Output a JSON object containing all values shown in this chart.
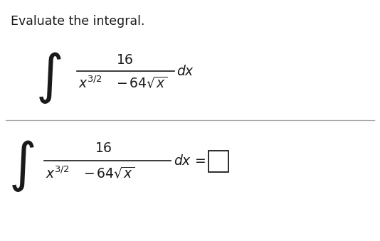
{
  "background_color": "#ffffff",
  "title": "Evaluate the integral.",
  "title_fontsize": 12.5,
  "text_color": "#1a1a1a",
  "line_color": "#aaaaaa",
  "figsize": [
    5.34,
    3.39
  ],
  "dpi": 100,
  "upper_integral_expr": "$\\displaystyle\\int\\frac{16}{x^{3/2}-64\\sqrt{x}}\\,dx$",
  "lower_integral_expr": "$\\displaystyle\\int\\frac{16}{x^{3/2}-64\\sqrt{x}}\\,dx=$",
  "math_fontsize": 14
}
